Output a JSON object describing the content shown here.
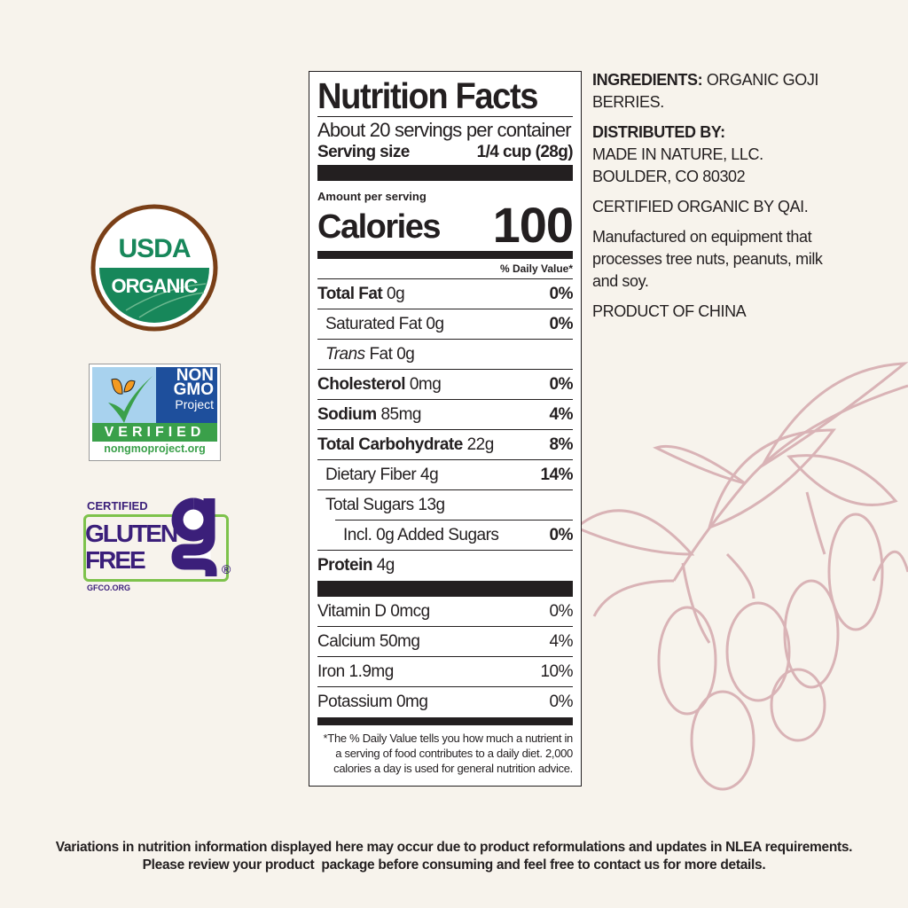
{
  "label": {
    "title": "Nutrition Facts",
    "servings": "About 20 servings per container",
    "serving_size_label": "Serving size",
    "serving_size_value": "1/4 cup (28g)",
    "amount_per_serving": "Amount per serving",
    "calories_label": "Calories",
    "calories_value": "100",
    "dv_header": "% Daily Value*",
    "nutrients": [
      {
        "name": "Total Fat",
        "amount": "0g",
        "dv": "0%"
      },
      {
        "name": "Saturated Fat",
        "amount": "0g",
        "dv": "0%"
      },
      {
        "name": "Trans",
        "name2": "Fat",
        "amount": "0g",
        "dv": ""
      },
      {
        "name": "Cholesterol",
        "amount": "0mg",
        "dv": "0%"
      },
      {
        "name": "Sodium",
        "amount": "85mg",
        "dv": "4%"
      },
      {
        "name": "Total Carbohydrate",
        "amount": "22g",
        "dv": "8%"
      },
      {
        "name": "Dietary Fiber",
        "amount": "4g",
        "dv": "14%"
      },
      {
        "name": "Total Sugars",
        "amount": "13g",
        "dv": ""
      },
      {
        "name": "Incl. 0g Added Sugars",
        "amount": "",
        "dv": "0%"
      },
      {
        "name": "Protein",
        "amount": "4g",
        "dv": ""
      }
    ],
    "vitamins": [
      {
        "name": "Vitamin D 0mcg",
        "dv": "0%"
      },
      {
        "name": "Calcium 50mg",
        "dv": "4%"
      },
      {
        "name": "Iron 1.9mg",
        "dv": "10%"
      },
      {
        "name": "Potassium 0mg",
        "dv": "0%"
      }
    ],
    "footnote": [
      "*The % Daily Value tells you how much a nutrient in",
      "a serving of food contributes to a daily diet. 2,000",
      "calories a day is used for general nutrition advice."
    ]
  },
  "side": {
    "ingredients_label": "INGREDIENTS:",
    "ingredients": "ORGANIC GOJI BERRIES.",
    "distributed_label": "DISTRIBUTED BY:",
    "distributor": "MADE IN NATURE, LLC.",
    "address": "BOULDER, CO 80302",
    "certified": "CERTIFIED ORGANIC BY QAI.",
    "allergen": "Manufactured on equipment that processes tree nuts, peanuts, milk and soy.",
    "origin": "PRODUCT OF CHINA"
  },
  "logos": {
    "usda": {
      "line1": "USDA",
      "line2": "ORGANIC"
    },
    "nongmo": {
      "line1": "NON",
      "line2": "GMO",
      "line3": "Project",
      "verified": "VERIFIED",
      "url": "nongmoproject.org"
    },
    "gluten": {
      "certified": "CERTIFIED",
      "line1": "GLUTEN",
      "line2": "FREE",
      "url": "GFCO.ORG",
      "reg": "®"
    }
  },
  "disclaimer": [
    "Variations in nutrition information displayed here may occur due to product reformulations and updates in NLEA requirements.",
    "Please review your product  package before consuming and feel free to contact us for more details."
  ],
  "colors": {
    "background": "#f7f3ec",
    "usda_green": "#17875a",
    "usda_brown": "#7a3f17",
    "nongmo_blue": "#1e4f9c",
    "nongmo_green": "#3aa04a",
    "gluten_purple": "#3b1f7a",
    "gluten_green": "#7dc24b",
    "goji_pink": "#d9b3b6"
  }
}
